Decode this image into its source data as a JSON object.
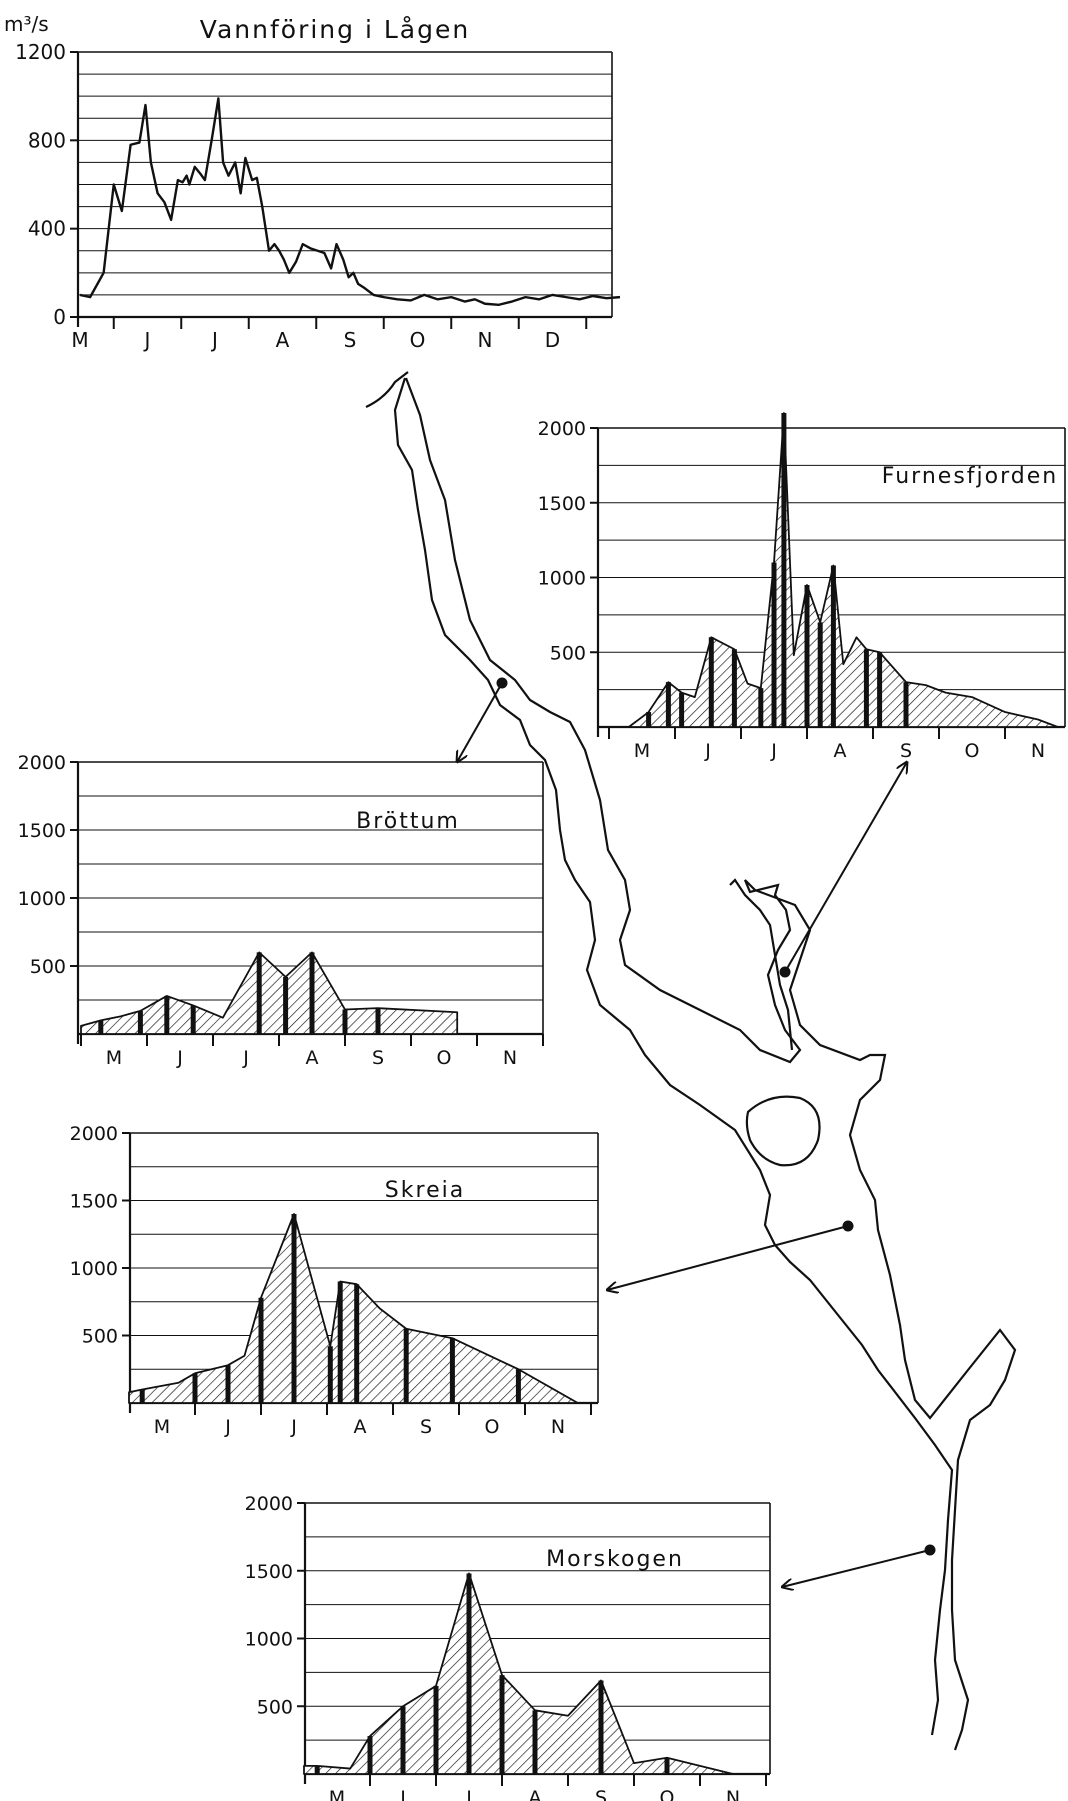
{
  "colors": {
    "ink": "#111111",
    "paper": "#ffffff"
  },
  "chart_data": [
    {
      "id": "lagen",
      "type": "line",
      "title": "Vannföring i Lågen",
      "ylabel": "m³/s",
      "ylim": [
        0,
        1200
      ],
      "yticks": [
        0,
        400,
        800,
        1200
      ],
      "grid": true,
      "categories": [
        "M",
        "J",
        "J",
        "A",
        "S",
        "O",
        "N",
        "D"
      ],
      "series": [
        {
          "x": [
            0,
            0.15,
            0.35,
            0.5,
            0.62,
            0.75,
            0.88,
            0.97,
            1.05,
            1.15,
            1.25,
            1.35,
            1.45,
            1.52,
            1.58,
            1.62,
            1.7,
            1.78,
            1.85,
            1.95,
            2.05,
            2.12,
            2.2,
            2.3,
            2.38,
            2.45,
            2.55,
            2.62,
            2.7,
            2.8,
            2.88,
            2.95,
            3.02,
            3.1,
            3.2,
            3.3,
            3.42,
            3.52,
            3.62,
            3.72,
            3.8,
            3.9,
            3.98,
            4.05,
            4.12,
            4.22,
            4.35,
            4.5,
            4.7,
            4.9,
            5.1,
            5.3,
            5.5,
            5.7,
            5.85,
            6.0,
            6.2,
            6.4,
            6.6,
            6.8,
            7.0,
            7.2,
            7.4,
            7.6,
            7.8,
            8.0
          ],
          "y": [
            100,
            90,
            200,
            600,
            480,
            780,
            790,
            960,
            700,
            560,
            520,
            440,
            620,
            610,
            640,
            600,
            680,
            650,
            620,
            800,
            990,
            700,
            640,
            700,
            560,
            720,
            620,
            630,
            500,
            300,
            330,
            300,
            260,
            200,
            250,
            330,
            310,
            300,
            290,
            220,
            330,
            260,
            180,
            200,
            150,
            130,
            100,
            90,
            80,
            75,
            100,
            80,
            90,
            70,
            80,
            60,
            55,
            70,
            90,
            80,
            100,
            90,
            80,
            95,
            85,
            90
          ]
        }
      ]
    },
    {
      "id": "furnesfjorden",
      "type": "area",
      "title": "Furnesfjorden",
      "ylim": [
        0,
        2000
      ],
      "yticks": [
        500,
        1000,
        1500,
        2000
      ],
      "categories": [
        "M",
        "J",
        "J",
        "A",
        "S",
        "O",
        "N"
      ],
      "series": [
        {
          "x": [
            -0.2,
            0.1,
            0.4,
            0.6,
            0.8,
            1.05,
            1.4,
            1.6,
            1.8,
            2.0,
            2.15,
            2.3,
            2.5,
            2.7,
            2.9,
            3.05,
            3.25,
            3.4,
            3.6,
            4.0,
            4.3,
            4.6,
            5.0,
            5.5,
            6.0,
            6.3
          ],
          "y": [
            0,
            100,
            300,
            230,
            200,
            600,
            520,
            290,
            260,
            1100,
            2100,
            480,
            950,
            700,
            1080,
            420,
            600,
            520,
            500,
            300,
            280,
            230,
            200,
            100,
            50,
            0
          ]
        }
      ],
      "bars_x": [
        0.1,
        0.4,
        0.6,
        1.05,
        1.4,
        1.8,
        2.0,
        2.15,
        2.5,
        2.7,
        2.9,
        3.4,
        3.6,
        4.0
      ],
      "bars_y": [
        100,
        300,
        230,
        600,
        520,
        260,
        1100,
        2100,
        950,
        700,
        1080,
        520,
        500,
        300
      ]
    },
    {
      "id": "brottum",
      "type": "area",
      "title": "Bröttum",
      "ylim": [
        0,
        2000
      ],
      "yticks": [
        500,
        1000,
        1500,
        2000
      ],
      "categories": [
        "M",
        "J",
        "J",
        "A",
        "S",
        "O",
        "N"
      ],
      "series": [
        {
          "x": [
            -0.5,
            -0.2,
            0.1,
            0.4,
            0.8,
            1.2,
            1.65,
            2.2,
            2.6,
            3.0,
            3.5,
            4.0,
            5.2
          ],
          "y": [
            60,
            100,
            130,
            170,
            280,
            210,
            120,
            600,
            420,
            600,
            180,
            190,
            160
          ]
        }
      ],
      "bars_x": [
        -0.2,
        0.4,
        0.8,
        1.2,
        2.2,
        2.6,
        3.0,
        3.5,
        4.0
      ],
      "bars_y": [
        100,
        170,
        280,
        210,
        600,
        420,
        600,
        180,
        190
      ]
    },
    {
      "id": "skreia",
      "type": "area",
      "title": "Skreia",
      "ylim": [
        0,
        2000
      ],
      "yticks": [
        500,
        1000,
        1500,
        2000
      ],
      "categories": [
        "M",
        "J",
        "J",
        "A",
        "S",
        "O",
        "N"
      ],
      "series": [
        {
          "x": [
            -0.5,
            -0.3,
            0.25,
            0.5,
            1.0,
            1.25,
            1.5,
            2.0,
            2.55,
            2.7,
            2.95,
            3.3,
            3.7,
            4.4,
            5.4,
            6.3
          ],
          "y": [
            80,
            100,
            150,
            220,
            280,
            350,
            780,
            1400,
            420,
            900,
            880,
            700,
            550,
            480,
            250,
            0
          ]
        }
      ],
      "bars_x": [
        -0.3,
        0.5,
        1.0,
        1.5,
        2.0,
        2.55,
        2.7,
        2.95,
        3.7,
        4.4,
        5.4
      ],
      "bars_y": [
        100,
        220,
        280,
        780,
        1400,
        420,
        900,
        880,
        550,
        480,
        250
      ]
    },
    {
      "id": "morskogen",
      "type": "area",
      "title": "Morskogen",
      "ylim": [
        0,
        2000
      ],
      "yticks": [
        500,
        1000,
        1500,
        2000
      ],
      "categories": [
        "M",
        "J",
        "J",
        "A",
        "S",
        "O",
        "N"
      ],
      "series": [
        {
          "x": [
            -0.5,
            -0.3,
            0.2,
            0.5,
            1.0,
            1.5,
            2.0,
            2.5,
            3.0,
            3.5,
            4.0,
            4.5,
            5.0,
            5.5,
            6.0
          ],
          "y": [
            60,
            60,
            40,
            280,
            500,
            650,
            1480,
            730,
            470,
            430,
            690,
            80,
            120,
            60,
            0
          ]
        }
      ],
      "bars_x": [
        -0.3,
        0.5,
        1.0,
        1.5,
        2.0,
        2.5,
        3.0,
        4.0,
        5.0
      ],
      "bars_y": [
        60,
        280,
        500,
        650,
        1480,
        730,
        470,
        690,
        120
      ]
    }
  ]
}
